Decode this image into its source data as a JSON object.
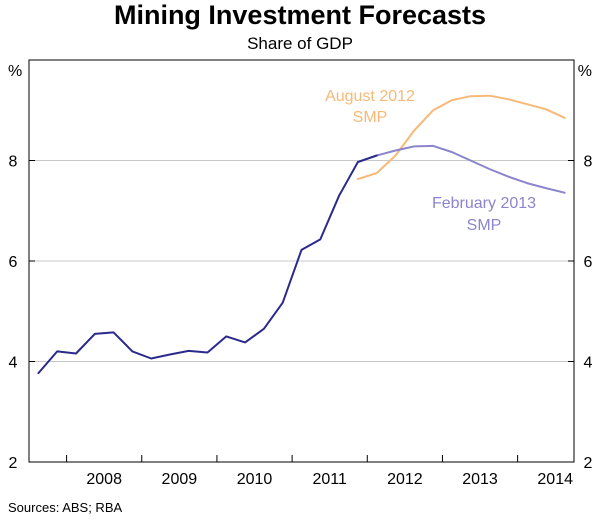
{
  "chart_data": {
    "type": "line",
    "title": "Mining Investment Forecasts",
    "subtitle": "Share of GDP",
    "y_unit_left": "%",
    "y_unit_right": "%",
    "ylim": [
      2,
      10
    ],
    "yticks": [
      2,
      4,
      6,
      8
    ],
    "ytick_labels": [
      "2",
      "4",
      "6",
      "8"
    ],
    "xlim": [
      2007.5,
      2014.75
    ],
    "xtick_labels": [
      "2008",
      "2009",
      "2010",
      "2011",
      "2012",
      "2013",
      "2014"
    ],
    "grid": true,
    "source": "Sources: ABS; RBA",
    "series": [
      {
        "color": "#2B2A8C",
        "x": [
          2007.625,
          2007.875,
          2008.125,
          2008.375,
          2008.625,
          2008.875,
          2009.125,
          2009.375,
          2009.625,
          2009.875,
          2010.125,
          2010.375,
          2010.625,
          2010.875,
          2011.125,
          2011.375,
          2011.625,
          2011.875,
          2012.125
        ],
        "values": [
          3.77,
          4.2,
          4.16,
          4.55,
          4.58,
          4.2,
          4.06,
          4.14,
          4.21,
          4.18,
          4.5,
          4.38,
          4.65,
          5.17,
          6.22,
          6.43,
          7.3,
          7.97,
          8.1
        ]
      },
      {
        "name": "August 2012",
        "label_line2": "SMP",
        "color": "#F7B977",
        "x": [
          2011.875,
          2012.125,
          2012.375,
          2012.625,
          2012.875,
          2013.125,
          2013.375,
          2013.625,
          2013.875,
          2014.125,
          2014.375,
          2014.625
        ],
        "values": [
          7.63,
          7.75,
          8.1,
          8.6,
          9.0,
          9.2,
          9.28,
          9.29,
          9.22,
          9.12,
          9.02,
          8.85
        ]
      },
      {
        "name": "February 2013",
        "label_line2": "SMP",
        "color": "#8A85CC",
        "x": [
          2012.125,
          2012.375,
          2012.625,
          2012.875,
          2013.125,
          2013.375,
          2013.625,
          2013.875,
          2014.125,
          2014.375,
          2014.625
        ],
        "values": [
          8.1,
          8.2,
          8.28,
          8.29,
          8.17,
          8.0,
          7.83,
          7.68,
          7.55,
          7.45,
          7.36
        ]
      }
    ]
  }
}
